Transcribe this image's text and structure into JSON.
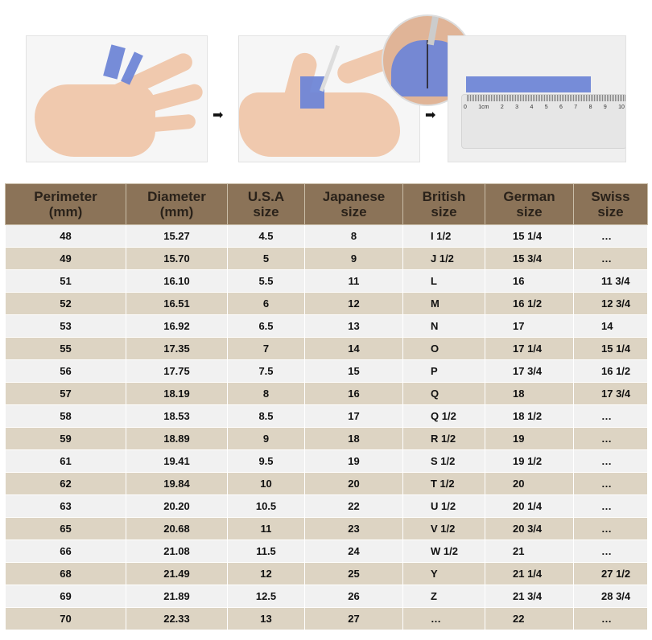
{
  "instructions": {
    "arrows": [
      "➡",
      "➡"
    ],
    "ruler_labels": [
      "0",
      "1cm",
      "2",
      "3",
      "4",
      "5",
      "6",
      "7",
      "8",
      "9",
      "10"
    ]
  },
  "colors": {
    "header_bg": "#8b7358",
    "row_odd": "#f1f1f1",
    "row_even": "#ddd4c3",
    "tape": "#6f86d6"
  },
  "table": {
    "headers": [
      [
        "Perimeter",
        "(mm)"
      ],
      [
        "Diameter",
        "(mm)"
      ],
      [
        "U.S.A",
        "size"
      ],
      [
        "Japanese",
        "size"
      ],
      [
        "British",
        "size"
      ],
      [
        "German",
        "size"
      ],
      [
        "Swiss",
        "size"
      ]
    ],
    "rows": [
      [
        "48",
        "15.27",
        "4.5",
        "8",
        "I 1/2",
        "15 1/4",
        "…"
      ],
      [
        "49",
        "15.70",
        "5",
        "9",
        "J 1/2",
        "15 3/4",
        "…"
      ],
      [
        "51",
        "16.10",
        "5.5",
        "11",
        "L",
        "16",
        "11 3/4"
      ],
      [
        "52",
        "16.51",
        "6",
        "12",
        "M",
        "16 1/2",
        "12 3/4"
      ],
      [
        "53",
        "16.92",
        "6.5",
        "13",
        "N",
        "17",
        "14"
      ],
      [
        "55",
        "17.35",
        "7",
        "14",
        "O",
        "17 1/4",
        "15 1/4"
      ],
      [
        "56",
        "17.75",
        "7.5",
        "15",
        "P",
        "17 3/4",
        "16 1/2"
      ],
      [
        "57",
        "18.19",
        "8",
        "16",
        "Q",
        "18",
        "17 3/4"
      ],
      [
        "58",
        "18.53",
        "8.5",
        "17",
        "Q 1/2",
        "18 1/2",
        "…"
      ],
      [
        "59",
        "18.89",
        "9",
        "18",
        "R 1/2",
        "19",
        "…"
      ],
      [
        "61",
        "19.41",
        "9.5",
        "19",
        "S 1/2",
        "19 1/2",
        "…"
      ],
      [
        "62",
        "19.84",
        "10",
        "20",
        "T 1/2",
        "20",
        "…"
      ],
      [
        "63",
        "20.20",
        "10.5",
        "22",
        "U 1/2",
        "20 1/4",
        "…"
      ],
      [
        "65",
        "20.68",
        "11",
        "23",
        "V 1/2",
        "20 3/4",
        "…"
      ],
      [
        "66",
        "21.08",
        "11.5",
        "24",
        "W 1/2",
        "21",
        "…"
      ],
      [
        "68",
        "21.49",
        "12",
        "25",
        "Y",
        "21 1/4",
        "27 1/2"
      ],
      [
        "69",
        "21.89",
        "12.5",
        "26",
        "Z",
        "21 3/4",
        "28 3/4"
      ],
      [
        "70",
        "22.33",
        "13",
        "27",
        "…",
        "22",
        "…"
      ]
    ]
  }
}
